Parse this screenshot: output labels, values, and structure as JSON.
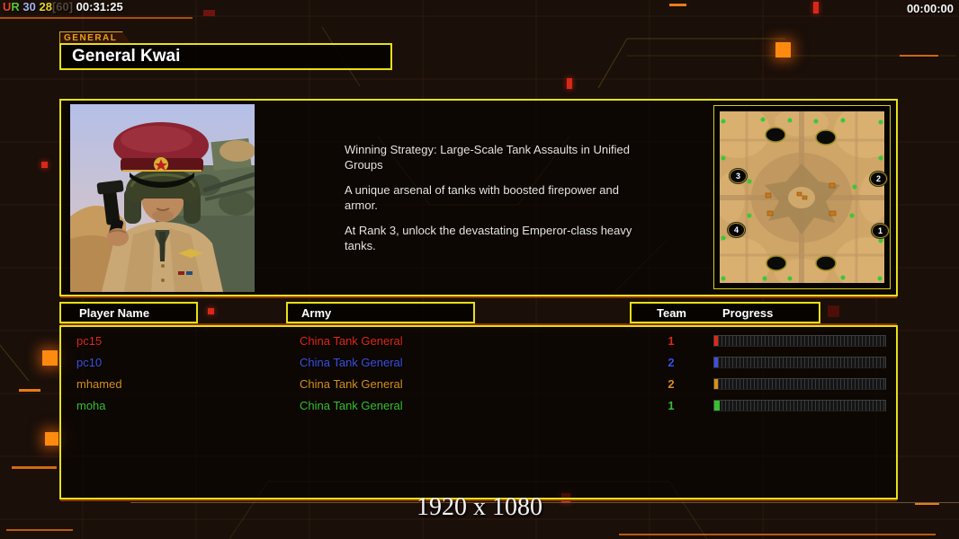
{
  "overlay": {
    "fps_counter": [
      {
        "text": "U",
        "color": "#e8432a"
      },
      {
        "text": "R",
        "color": "#52c832"
      },
      {
        "text": " 30",
        "color": "#a4b2ec"
      },
      {
        "text": " 28",
        "color": "#e8d22a"
      },
      {
        "text": "[60]",
        "color": "#564638"
      },
      {
        "text": " 00:31:25",
        "color": "#f8f8f8"
      }
    ],
    "clock": "00:00:00",
    "resolution": "1920 x 1080"
  },
  "header": {
    "tab_label": "GENERAL",
    "title": "General Kwai"
  },
  "general_info": {
    "paragraphs": [
      "Winning Strategy: Large-Scale Tank Assaults in Unified Groups",
      "A unique arsenal of tanks with boosted firepower and armor.",
      "At Rank 3, unlock the devastating Emperor-class heavy tanks."
    ]
  },
  "map_preview": {
    "start_positions": [
      "1",
      "2",
      "3",
      "4"
    ]
  },
  "table": {
    "headers": {
      "player_name": "Player Name",
      "army": "Army",
      "team": "Team",
      "progress": "Progress"
    },
    "rows": [
      {
        "name": "pc15",
        "army": "China Tank General",
        "team": "1",
        "color": "#e02818",
        "progress_pct": 2
      },
      {
        "name": "pc10",
        "army": "China Tank General",
        "team": "2",
        "color": "#3c50e0",
        "progress_pct": 2
      },
      {
        "name": "mhamed",
        "army": "China Tank General",
        "team": "2",
        "color": "#d89018",
        "progress_pct": 2
      },
      {
        "name": "moha",
        "army": "China Tank General",
        "team": "1",
        "color": "#38c030",
        "progress_pct": 3
      }
    ]
  },
  "colors": {
    "panel_border": "#e8e014",
    "accent_orange": "#ff8a10",
    "tab_text": "#e8a018"
  }
}
